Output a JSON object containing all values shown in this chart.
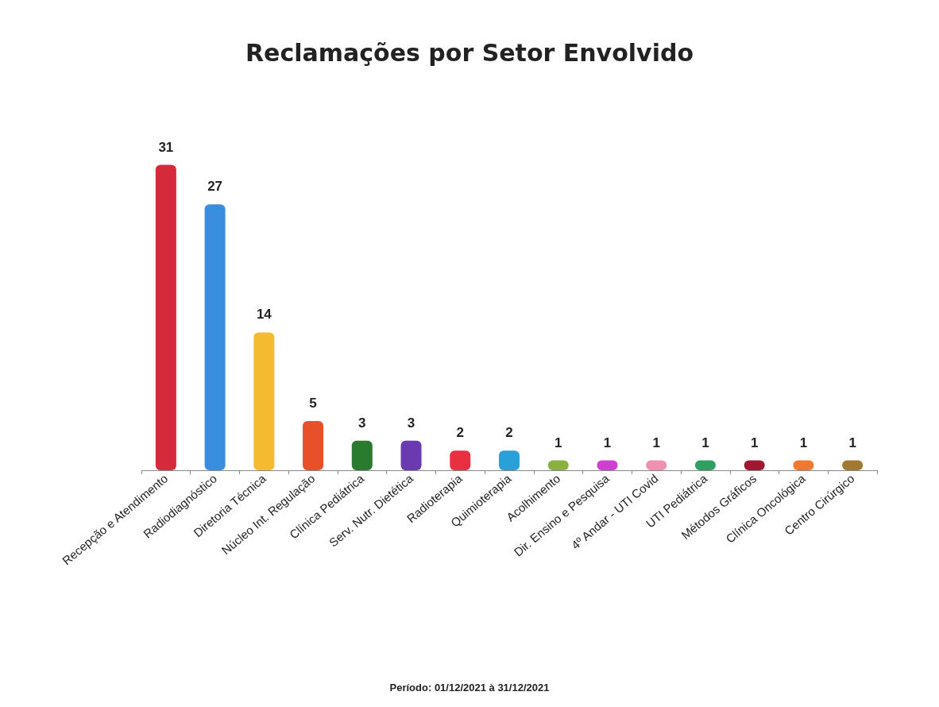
{
  "chart_data": {
    "type": "bar",
    "title": "Reclamações por Setor Envolvido",
    "categories": [
      "Recepção e Atendimento",
      "Radiodiagnóstico",
      "Diretoria Técnica",
      "Núcleo Int. Regulação",
      "Clínica Pediátrica",
      "Serv. Nutr. Dietética",
      "Radioterapia",
      "Quimioterapia",
      "Acolhimento",
      "Dir. Ensino e Pesquisa",
      "4º Andar - UTI Covid",
      "UTI Pediátrica",
      "Métodos Gráficos",
      "Clínica Oncológica",
      "Centro Cirúrgico"
    ],
    "values": [
      31,
      27,
      14,
      5,
      3,
      3,
      2,
      2,
      1,
      1,
      1,
      1,
      1,
      1,
      1
    ],
    "colors": [
      "#d42a3a",
      "#3a8ee0",
      "#f5bb30",
      "#e8502a",
      "#2a7a30",
      "#6a3ab0",
      "#e83040",
      "#2aa0d8",
      "#8ab040",
      "#d040d0",
      "#f090b0",
      "#30a060",
      "#a01830",
      "#f07830",
      "#a07830"
    ],
    "data_labels": true,
    "grid": false,
    "annotations": [
      "Período: 01/12/2021 à 31/12/2021"
    ]
  }
}
